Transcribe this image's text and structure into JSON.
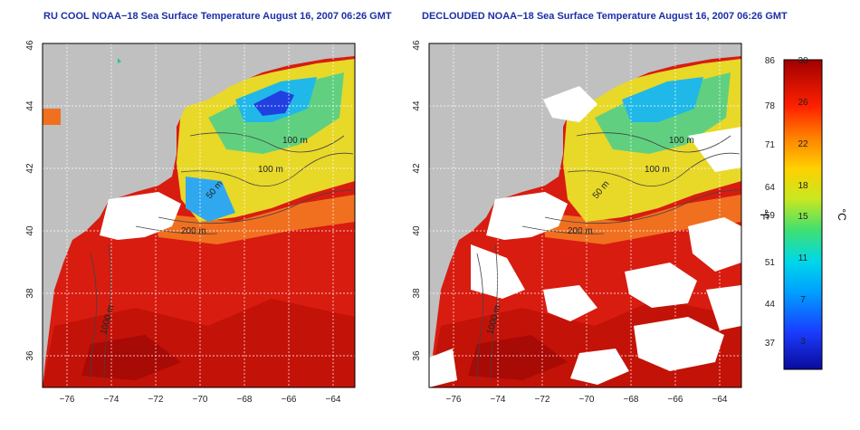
{
  "left_panel": {
    "title": "RU COOL NOAA−18 Sea Surface Temperature August 16, 2007 06:26 GMT"
  },
  "right_panel": {
    "title": "DECLOUDED NOAA−18 Sea Surface Temperature August 16, 2007 06:26 GMT"
  },
  "axes": {
    "x_ticks": [
      "−76",
      "−74",
      "−72",
      "−70",
      "−68",
      "−66",
      "−64"
    ],
    "y_ticks": [
      "36",
      "38",
      "40",
      "42",
      "44",
      "46"
    ]
  },
  "contour_labels": {
    "left": [
      "100 m",
      "100 m",
      "200 m",
      "50 m",
      "1000 m"
    ],
    "right": [
      "100 m",
      "100 m",
      "200 m",
      "50 m",
      "1000 m"
    ]
  },
  "colorbar": {
    "f_label": "°F",
    "c_label": "°C",
    "f_ticks": [
      "86",
      "78",
      "71",
      "64",
      "59",
      "51",
      "44",
      "37"
    ],
    "c_ticks": [
      "30",
      "26",
      "22",
      "18",
      "15",
      "11",
      "7",
      "3"
    ]
  },
  "colors": {
    "land": "#c0c0c0",
    "cloud": "#ffffff",
    "warm": "#d81c10",
    "title": "#1a2fa8"
  }
}
